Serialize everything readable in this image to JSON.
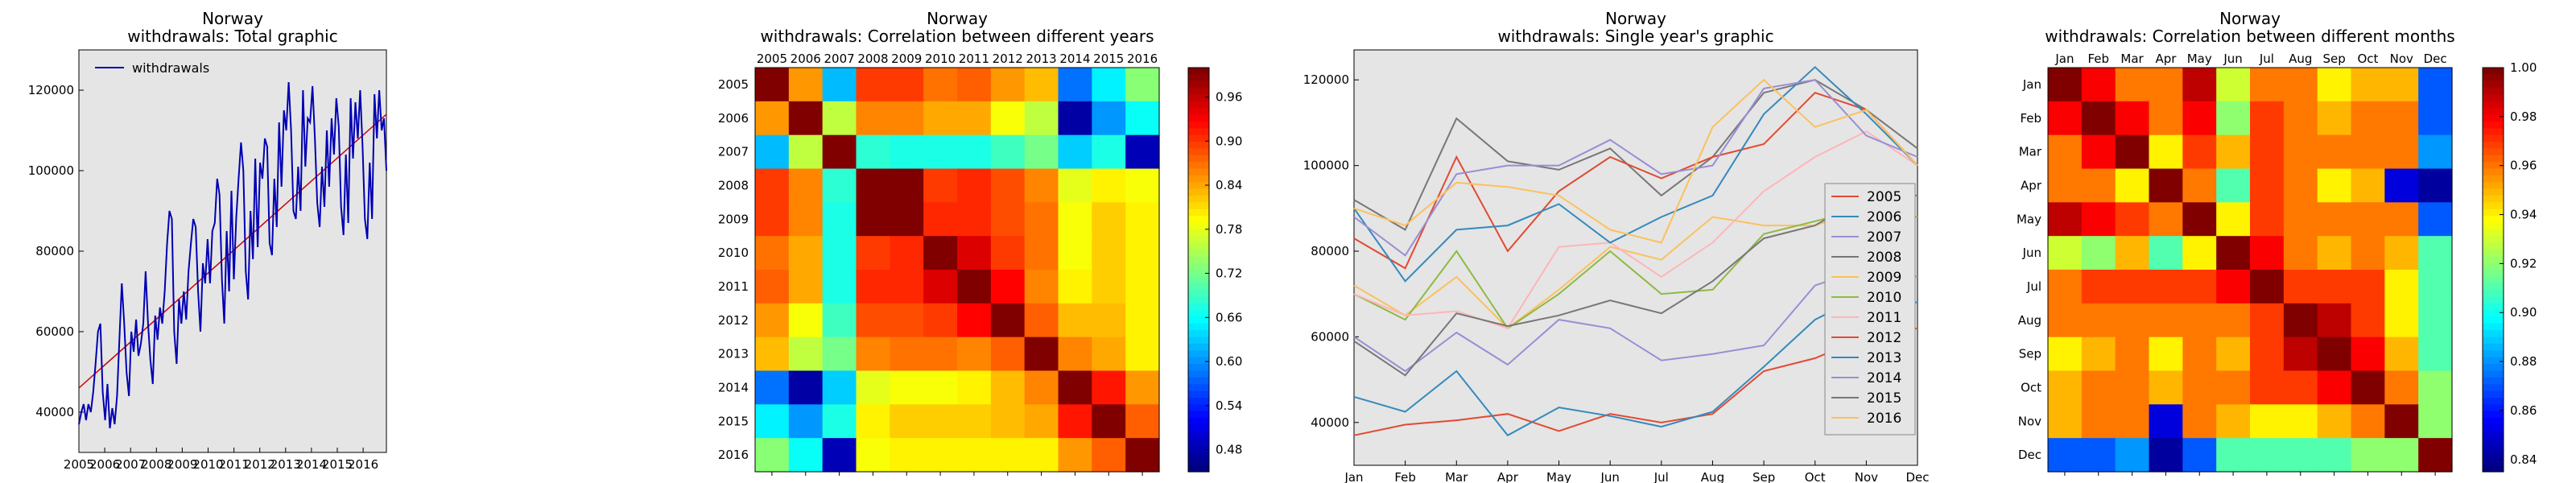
{
  "chart_data": [
    {
      "type": "line",
      "title_line1": "Norway",
      "title_line2": "withdrawals: Total graphic",
      "x_ticks": [
        "2005",
        "2006",
        "2007",
        "2008",
        "2009",
        "2010",
        "2011",
        "2012",
        "2013",
        "2014",
        "2015",
        "2016"
      ],
      "xlim": [
        2005,
        2016.9
      ],
      "y_ticks": [
        "40000",
        "60000",
        "80000",
        "100000",
        "120000"
      ],
      "ylim": [
        30000,
        130000
      ],
      "legend": [
        "withdrawals"
      ],
      "legend_position": "top-left",
      "colors": {
        "series": "#0000b3",
        "trend": "#cc0000",
        "plot_bg": "#e5e5e5"
      },
      "series_values": [
        37000,
        40000,
        42000,
        38000,
        42000,
        40000,
        45000,
        52000,
        60000,
        62000,
        45000,
        38000,
        47000,
        36000,
        41000,
        37000,
        44000,
        58000,
        72000,
        62000,
        50000,
        44000,
        60000,
        55000,
        63000,
        54000,
        57000,
        62000,
        75000,
        62000,
        53000,
        47000,
        64000,
        58000,
        66000,
        62000,
        70000,
        82000,
        90000,
        88000,
        60000,
        52000,
        68000,
        62000,
        70000,
        63000,
        75000,
        82000,
        88000,
        86000,
        70000,
        60000,
        77000,
        72000,
        83000,
        72000,
        85000,
        87000,
        98000,
        94000,
        73000,
        62000,
        85000,
        70000,
        95000,
        73000,
        88000,
        98000,
        107000,
        100000,
        75000,
        68000,
        90000,
        78000,
        103000,
        81000,
        102000,
        98000,
        108000,
        106000,
        82000,
        79000,
        98000,
        86000,
        112000,
        96000,
        115000,
        110000,
        122000,
        110000,
        90000,
        88000,
        101000,
        90000,
        120000,
        101000,
        113000,
        112000,
        121000,
        108000,
        92000,
        86000,
        101000,
        91000,
        110000,
        96000,
        113000,
        104000,
        118000,
        111000,
        91000,
        84000,
        104000,
        87000,
        118000,
        103000,
        117000,
        108000,
        120000,
        106000,
        88000,
        83000,
        102000,
        88000,
        119000,
        108000,
        120000,
        110000,
        113000,
        100000
      ],
      "trend": [
        [
          2005,
          46000
        ],
        [
          2016.9,
          114000
        ]
      ]
    },
    {
      "type": "heatmap",
      "title_line1": "Norway",
      "title_line2": "withdrawals: Correlation between different years",
      "labels": [
        "2005",
        "2006",
        "2007",
        "2008",
        "2009",
        "2010",
        "2011",
        "2012",
        "2013",
        "2014",
        "2015",
        "2016"
      ],
      "colorbar_ticks": [
        "0.96",
        "0.90",
        "0.84",
        "0.78",
        "0.72",
        "0.66",
        "0.60",
        "0.54",
        "0.48"
      ],
      "vmin": 0.45,
      "vmax": 1.0,
      "matrix": [
        [
          1.0,
          0.85,
          0.62,
          0.9,
          0.9,
          0.87,
          0.88,
          0.85,
          0.83,
          0.58,
          0.65,
          0.73
        ],
        [
          0.85,
          1.0,
          0.76,
          0.86,
          0.86,
          0.84,
          0.84,
          0.79,
          0.76,
          0.47,
          0.6,
          0.66
        ],
        [
          0.62,
          0.76,
          1.0,
          0.68,
          0.67,
          0.67,
          0.67,
          0.69,
          0.72,
          0.63,
          0.67,
          0.48
        ],
        [
          0.9,
          0.86,
          0.68,
          1.0,
          1.0,
          0.9,
          0.91,
          0.89,
          0.86,
          0.78,
          0.8,
          0.79
        ],
        [
          0.9,
          0.86,
          0.67,
          1.0,
          1.0,
          0.91,
          0.91,
          0.89,
          0.87,
          0.79,
          0.82,
          0.8
        ],
        [
          0.87,
          0.84,
          0.67,
          0.9,
          0.91,
          1.0,
          0.95,
          0.9,
          0.87,
          0.79,
          0.82,
          0.8
        ],
        [
          0.88,
          0.84,
          0.67,
          0.91,
          0.91,
          0.95,
          1.0,
          0.93,
          0.86,
          0.8,
          0.82,
          0.8
        ],
        [
          0.85,
          0.79,
          0.69,
          0.89,
          0.89,
          0.9,
          0.93,
          1.0,
          0.88,
          0.83,
          0.83,
          0.8
        ],
        [
          0.83,
          0.76,
          0.72,
          0.86,
          0.87,
          0.87,
          0.86,
          0.88,
          1.0,
          0.86,
          0.84,
          0.8
        ],
        [
          0.58,
          0.47,
          0.63,
          0.78,
          0.79,
          0.79,
          0.8,
          0.83,
          0.86,
          1.0,
          0.92,
          0.85
        ],
        [
          0.65,
          0.6,
          0.67,
          0.8,
          0.82,
          0.82,
          0.82,
          0.83,
          0.84,
          0.92,
          1.0,
          0.88
        ],
        [
          0.73,
          0.66,
          0.48,
          0.79,
          0.8,
          0.8,
          0.8,
          0.8,
          0.8,
          0.85,
          0.88,
          1.0
        ]
      ]
    },
    {
      "type": "line",
      "title_line1": "Norway",
      "title_line2": "withdrawals: Single year's graphic",
      "x_ticks": [
        "Jan",
        "Feb",
        "Mar",
        "Apr",
        "May",
        "Jun",
        "Jul",
        "Aug",
        "Sep",
        "Oct",
        "Nov",
        "Dec"
      ],
      "y_ticks": [
        "40000",
        "60000",
        "80000",
        "100000",
        "120000"
      ],
      "ylim": [
        30000,
        127000
      ],
      "legend_position": "bottom-right",
      "series": [
        {
          "name": "2005",
          "color": "#e24a33",
          "values": [
            37000,
            39500,
            40500,
            42000,
            38000,
            42000,
            40000,
            42000,
            52000,
            55000,
            60000,
            62000
          ]
        },
        {
          "name": "2006",
          "color": "#348abd",
          "values": [
            46000,
            42500,
            52000,
            37000,
            43500,
            41500,
            39000,
            42500,
            53000,
            64000,
            70000,
            68000
          ]
        },
        {
          "name": "2007",
          "color": "#988ed5",
          "values": [
            60000,
            52000,
            61000,
            53500,
            64000,
            62000,
            54500,
            56000,
            58000,
            72000,
            76000,
            74000
          ]
        },
        {
          "name": "2008",
          "color": "#777777",
          "values": [
            92000,
            85000,
            111000,
            101000,
            99000,
            104000,
            93000,
            102000,
            117000,
            120000,
            113000,
            104000
          ]
        },
        {
          "name": "2009",
          "color": "#fbc15e",
          "values": [
            72000,
            65000,
            74000,
            62000,
            71000,
            81000,
            78000,
            88000,
            86000,
            86000,
            90000,
            88000
          ]
        },
        {
          "name": "2010",
          "color": "#8eba42",
          "values": [
            70000,
            64000,
            80000,
            62000,
            70000,
            80000,
            70000,
            71000,
            84000,
            87000,
            90000,
            88000
          ]
        },
        {
          "name": "2011",
          "color": "#ffb5b8",
          "values": [
            70000,
            65000,
            66000,
            62000,
            81000,
            82000,
            74000,
            82000,
            94000,
            102000,
            108000,
            100000
          ]
        },
        {
          "name": "2012",
          "color": "#e24a33",
          "values": [
            83000,
            76000,
            102000,
            80000,
            94000,
            102000,
            97000,
            102000,
            105000,
            117000,
            113000,
            100000
          ]
        },
        {
          "name": "2013",
          "color": "#348abd",
          "values": [
            90000,
            73000,
            85000,
            86000,
            91000,
            82000,
            88000,
            93000,
            112000,
            123000,
            112000,
            100000
          ]
        },
        {
          "name": "2014",
          "color": "#988ed5",
          "values": [
            88000,
            79000,
            98000,
            100000,
            100000,
            106000,
            98000,
            100000,
            118000,
            120000,
            107000,
            102000
          ]
        },
        {
          "name": "2015",
          "color": "#777777",
          "values": [
            59000,
            51000,
            65500,
            62500,
            65000,
            68500,
            65500,
            73000,
            83000,
            86000,
            93000,
            93000
          ]
        },
        {
          "name": "2016",
          "color": "#fbc15e",
          "values": [
            90000,
            86000,
            96000,
            95000,
            93000,
            85000,
            82000,
            109000,
            120000,
            109000,
            113000,
            100000
          ]
        }
      ]
    },
    {
      "type": "heatmap",
      "title_line1": "Norway",
      "title_line2": "withdrawals: Correlation between different months",
      "labels": [
        "Jan",
        "Feb",
        "Mar",
        "Apr",
        "May",
        "Jun",
        "Jul",
        "Aug",
        "Sep",
        "Oct",
        "Nov",
        "Dec"
      ],
      "colorbar_ticks": [
        "1.00",
        "0.98",
        "0.96",
        "0.94",
        "0.92",
        "0.90",
        "0.88",
        "0.86",
        "0.84"
      ],
      "vmin": 0.835,
      "vmax": 1.0,
      "matrix": [
        [
          1.0,
          0.98,
          0.96,
          0.96,
          0.99,
          0.93,
          0.96,
          0.96,
          0.94,
          0.95,
          0.95,
          0.87
        ],
        [
          0.98,
          1.0,
          0.98,
          0.96,
          0.98,
          0.92,
          0.97,
          0.96,
          0.95,
          0.96,
          0.96,
          0.87
        ],
        [
          0.96,
          0.98,
          1.0,
          0.94,
          0.97,
          0.95,
          0.97,
          0.96,
          0.96,
          0.96,
          0.96,
          0.88
        ],
        [
          0.96,
          0.96,
          0.94,
          1.0,
          0.96,
          0.91,
          0.97,
          0.96,
          0.94,
          0.95,
          0.85,
          0.84
        ],
        [
          0.99,
          0.98,
          0.97,
          0.96,
          1.0,
          0.94,
          0.97,
          0.96,
          0.96,
          0.96,
          0.96,
          0.87
        ],
        [
          0.93,
          0.92,
          0.95,
          0.91,
          0.94,
          1.0,
          0.98,
          0.96,
          0.95,
          0.96,
          0.95,
          0.91
        ],
        [
          0.96,
          0.97,
          0.97,
          0.97,
          0.97,
          0.98,
          1.0,
          0.97,
          0.97,
          0.97,
          0.94,
          0.91
        ],
        [
          0.96,
          0.96,
          0.96,
          0.96,
          0.96,
          0.96,
          0.97,
          1.0,
          0.99,
          0.97,
          0.94,
          0.91
        ],
        [
          0.94,
          0.95,
          0.96,
          0.94,
          0.96,
          0.95,
          0.97,
          0.99,
          1.0,
          0.98,
          0.95,
          0.91
        ],
        [
          0.95,
          0.96,
          0.96,
          0.95,
          0.96,
          0.96,
          0.97,
          0.97,
          0.98,
          1.0,
          0.96,
          0.92
        ],
        [
          0.95,
          0.96,
          0.96,
          0.85,
          0.96,
          0.95,
          0.94,
          0.94,
          0.95,
          0.96,
          1.0,
          0.92
        ],
        [
          0.87,
          0.87,
          0.88,
          0.84,
          0.87,
          0.91,
          0.91,
          0.91,
          0.91,
          0.92,
          0.92,
          1.0
        ]
      ]
    }
  ]
}
